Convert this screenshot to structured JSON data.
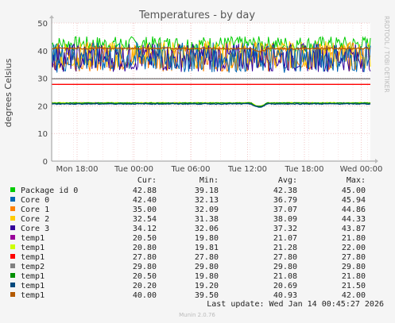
{
  "chart_data": {
    "type": "line",
    "title": "Temperatures - by day",
    "ylabel": "degrees Celsius",
    "side_label": "RRDTOOL / TOBI OETIKER",
    "ylim": [
      0,
      50
    ],
    "yticks": [
      "0",
      "10",
      "20",
      "30",
      "40",
      "50"
    ],
    "xticks": [
      "Mon 18:00",
      "Tue 00:00",
      "Tue 06:00",
      "Tue 12:00",
      "Tue 18:00",
      "Wed 00:00"
    ],
    "grid": true,
    "legend_position": "bottom",
    "headers": [
      "Cur:",
      "Min:",
      "Avg:",
      "Max:"
    ],
    "series": [
      {
        "name": "Package id 0",
        "color": "#00cc00",
        "cur": "42.88",
        "min": "39.18",
        "avg": "42.38",
        "max": "45.00",
        "center": 42.4,
        "amp": 2.8
      },
      {
        "name": "Core 0",
        "color": "#0066b3",
        "cur": "42.40",
        "min": "32.13",
        "avg": "36.79",
        "max": "45.94",
        "center": 37.5,
        "amp": 5.5
      },
      {
        "name": "Core 1",
        "color": "#ff8000",
        "cur": "35.00",
        "min": "32.09",
        "avg": "37.07",
        "max": "44.86",
        "center": 37.7,
        "amp": 5.2
      },
      {
        "name": "Core 2",
        "color": "#ffcc00",
        "cur": "32.54",
        "min": "31.38",
        "avg": "38.09",
        "max": "44.33",
        "center": 38.5,
        "amp": 5.0
      },
      {
        "name": "Core 3",
        "color": "#330099",
        "cur": "34.12",
        "min": "32.06",
        "avg": "37.32",
        "max": "43.87",
        "center": 37.5,
        "amp": 5.2
      },
      {
        "name": "temp1",
        "color": "#990099",
        "cur": "20.50",
        "min": "19.80",
        "avg": "21.07",
        "max": "21.80",
        "center": 21.0,
        "amp": 0.3
      },
      {
        "name": "temp1",
        "color": "#ccff00",
        "cur": "20.80",
        "min": "19.81",
        "avg": "21.28",
        "max": "22.00",
        "center": 21.1,
        "amp": 0.3
      },
      {
        "name": "temp1",
        "color": "#ff0000",
        "cur": "27.80",
        "min": "27.80",
        "avg": "27.80",
        "max": "27.80",
        "center": 27.8,
        "amp": 0
      },
      {
        "name": "temp2",
        "color": "#808080",
        "cur": "29.80",
        "min": "29.80",
        "avg": "29.80",
        "max": "29.80",
        "center": 29.8,
        "amp": 0
      },
      {
        "name": "temp1",
        "color": "#008f00",
        "cur": "20.50",
        "min": "19.80",
        "avg": "21.08",
        "max": "21.80",
        "center": 21.0,
        "amp": 0.3
      },
      {
        "name": "temp1",
        "color": "#00487d",
        "cur": "20.20",
        "min": "19.20",
        "avg": "20.69",
        "max": "21.50",
        "center": 20.7,
        "amp": 0.3
      },
      {
        "name": "temp1",
        "color": "#b35a00",
        "cur": "40.00",
        "min": "39.50",
        "avg": "40.93",
        "max": "42.00",
        "center": 40.8,
        "amp": 0.6
      }
    ]
  },
  "last_update": "Last update: Wed Jan 14 00:45:27 2026",
  "footer": "Munin 2.0.76"
}
